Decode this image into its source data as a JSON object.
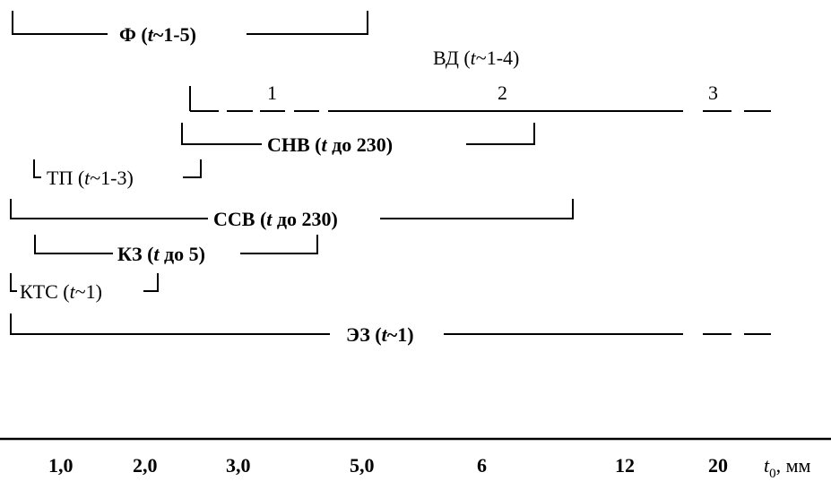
{
  "labels": {
    "f": {
      "pre": "Ф (",
      "it": "t",
      "post": "~1-5)"
    },
    "vd": {
      "pre": "ВД (",
      "it": "t",
      "post": "~1-4)"
    },
    "vd_seg1": "1",
    "vd_seg2": "2",
    "vd_seg3": "3",
    "snv": {
      "pre": "СНВ (",
      "it": "t",
      "post": " до 230)"
    },
    "tp": {
      "pre": "ТП (",
      "it": "t",
      "post": "~1-3)"
    },
    "ssv": {
      "pre": "ССВ (",
      "it": "t",
      "post": " до 230)"
    },
    "kz": {
      "pre": "КЗ (",
      "it": "t",
      "post": " до 5)"
    },
    "kts": {
      "pre": "КТС (",
      "it": "t",
      "post": "~1)"
    },
    "ez": {
      "pre": "ЭЗ (",
      "it": "t",
      "post": "~1)"
    }
  },
  "axis": {
    "ticks": [
      "1,0",
      "2,0",
      "3,0",
      "5,0",
      "6",
      "12",
      "20"
    ],
    "unit_var": "t",
    "unit_sub": "0",
    "unit_text": ", мм"
  }
}
